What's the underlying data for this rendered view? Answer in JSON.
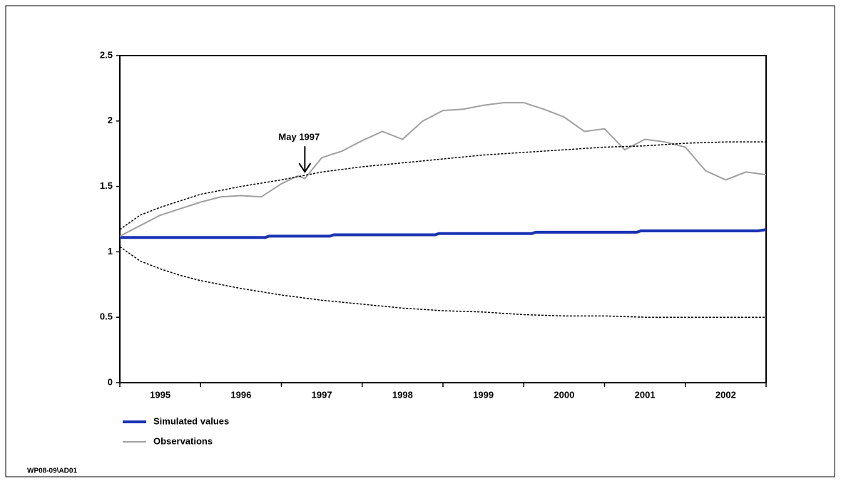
{
  "chart_data": {
    "type": "line",
    "xlim": [
      1995,
      2003
    ],
    "xticks": [
      1995,
      1996,
      1997,
      1998,
      1999,
      2000,
      2001,
      2002,
      2003
    ],
    "year_labels": [
      "1995",
      "1996",
      "1997",
      "1998",
      "1999",
      "2000",
      "2001",
      "2002"
    ],
    "ylim": [
      0,
      2.5
    ],
    "yticks": [
      0,
      0.5,
      1,
      1.5,
      2,
      2.5
    ],
    "legend": "bottom-left",
    "annotation": {
      "text": "May 1997",
      "x": 1997.29,
      "y": 1.6
    },
    "footnote": "WP08-09\\AD01",
    "series": [
      {
        "name": "Simulated values",
        "color": "#1a33b3",
        "style": "solid",
        "width": 4,
        "x": [
          1995,
          1996.8,
          1996.85,
          1997.6,
          1997.65,
          1998.9,
          1998.95,
          2000.1,
          2000.15,
          2001.4,
          2001.45,
          2002.9,
          2003
        ],
        "values": [
          1.11,
          1.11,
          1.12,
          1.12,
          1.13,
          1.13,
          1.14,
          1.14,
          1.15,
          1.15,
          1.16,
          1.16,
          1.17
        ]
      },
      {
        "name": "Observations",
        "color": "#a0a0a0",
        "style": "solid",
        "width": 2,
        "x": [
          1995,
          1995.25,
          1995.5,
          1995.75,
          1996,
          1996.25,
          1996.5,
          1996.75,
          1997,
          1997.2,
          1997.29,
          1997.5,
          1997.75,
          1998,
          1998.25,
          1998.5,
          1998.75,
          1999,
          1999.25,
          1999.5,
          1999.75,
          2000,
          2000.25,
          2000.5,
          2000.75,
          2001,
          2001.25,
          2001.5,
          2001.75,
          2002,
          2002.25,
          2002.5,
          2002.75,
          2003
        ],
        "values": [
          1.12,
          1.2,
          1.28,
          1.33,
          1.38,
          1.42,
          1.43,
          1.42,
          1.52,
          1.58,
          1.56,
          1.72,
          1.77,
          1.85,
          1.92,
          1.86,
          2.0,
          2.08,
          2.09,
          2.12,
          2.14,
          2.14,
          2.09,
          2.03,
          1.92,
          1.94,
          1.78,
          1.86,
          1.84,
          1.8,
          1.62,
          1.55,
          1.61,
          1.59
        ]
      },
      {
        "color": "#000000",
        "style": "dashed",
        "width": 1.5,
        "x": [
          1995,
          1995.25,
          1995.5,
          1995.75,
          1996,
          1996.5,
          1997,
          1997.5,
          1998,
          1998.5,
          1999,
          1999.5,
          2000,
          2000.5,
          2001,
          2001.5,
          2002,
          2002.5,
          2003
        ],
        "values": [
          1.17,
          1.28,
          1.34,
          1.39,
          1.44,
          1.5,
          1.55,
          1.61,
          1.65,
          1.68,
          1.71,
          1.74,
          1.76,
          1.78,
          1.8,
          1.81,
          1.83,
          1.84,
          1.84
        ]
      },
      {
        "color": "#000000",
        "style": "dashed",
        "width": 1.5,
        "x": [
          1995,
          1995.25,
          1995.5,
          1995.75,
          1996,
          1996.5,
          1997,
          1997.5,
          1998,
          1998.5,
          1999,
          1999.5,
          2000,
          2000.5,
          2001,
          2001.5,
          2002,
          2002.5,
          2003
        ],
        "values": [
          1.04,
          0.93,
          0.87,
          0.82,
          0.78,
          0.72,
          0.67,
          0.63,
          0.6,
          0.57,
          0.55,
          0.54,
          0.52,
          0.51,
          0.51,
          0.5,
          0.5,
          0.5,
          0.5
        ]
      }
    ]
  }
}
